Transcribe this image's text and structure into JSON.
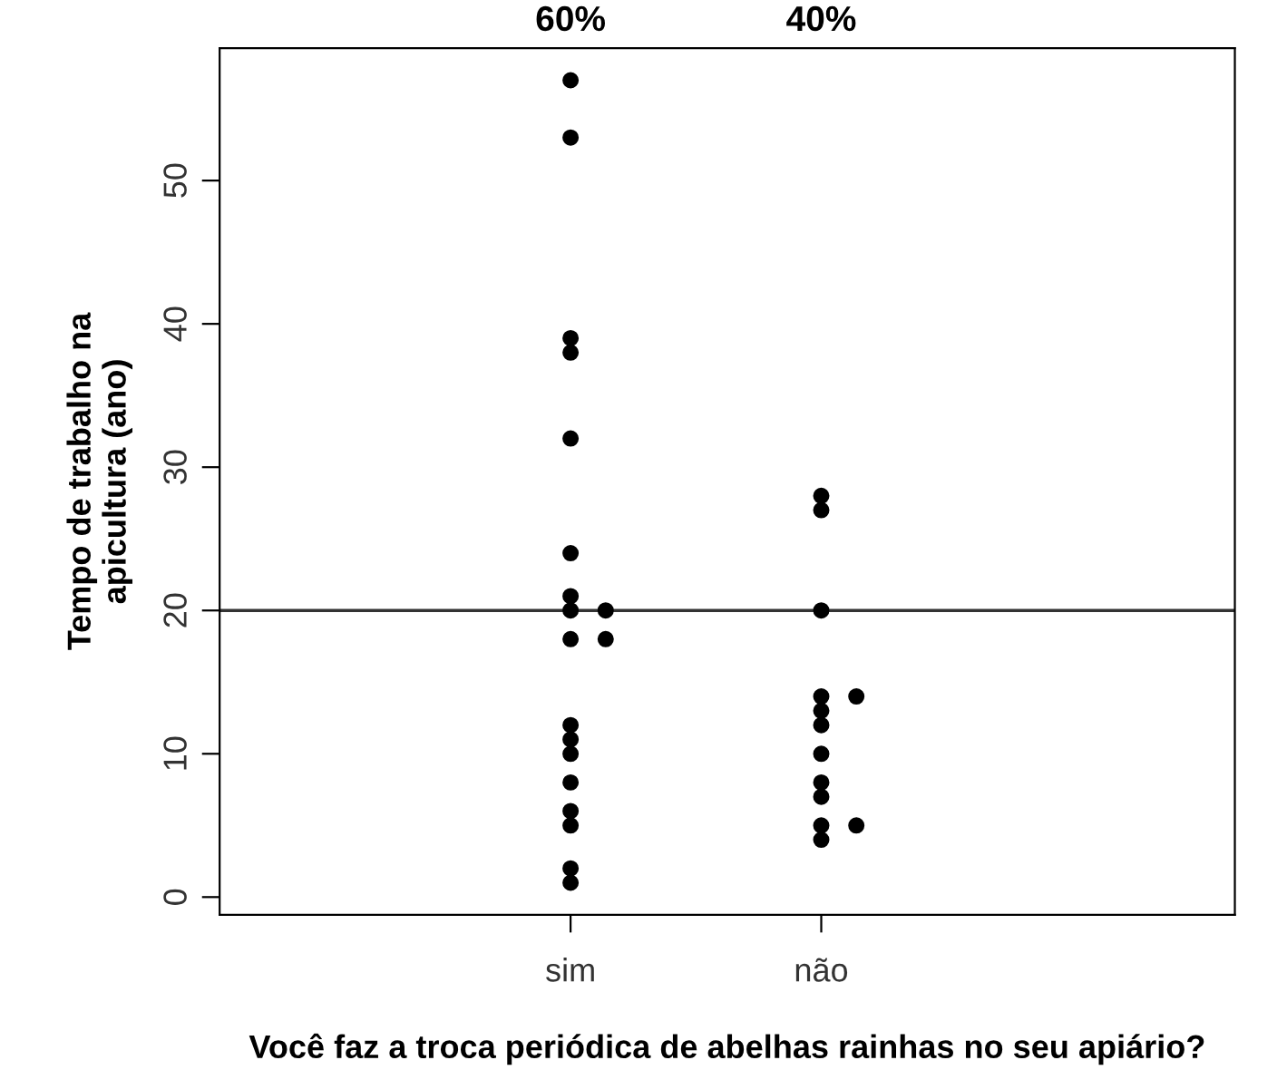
{
  "chart_data": {
    "type": "scatter",
    "xlabel": "Você faz a troca periódica de abelhas rainhas no seu apiário?",
    "ylabel": "Tempo de trabalho na\napicultura (ano)",
    "categories": [
      "sim",
      "não"
    ],
    "series": [
      {
        "color": "#000000",
        "x": [
          "sim",
          "sim",
          "sim",
          "sim",
          "sim",
          "sim",
          "sim",
          "sim",
          "sim",
          "sim",
          "sim",
          "sim",
          "sim",
          "sim",
          "sim",
          "sim",
          "sim",
          "sim",
          "sim",
          "não",
          "não",
          "não",
          "não",
          "não",
          "não",
          "não",
          "não",
          "não",
          "não",
          "não",
          "não",
          "não"
        ],
        "values": [
          57,
          53,
          39,
          38,
          32,
          24,
          21,
          20,
          20,
          18,
          18,
          12,
          11,
          10,
          8,
          6,
          5,
          2,
          1,
          28,
          27,
          20,
          14,
          14,
          13,
          12,
          10,
          8,
          7,
          5,
          5,
          4
        ]
      }
    ],
    "ylim": [
      -1.24,
      59.24
    ],
    "yticks": [
      0,
      10,
      20,
      30,
      40,
      50
    ],
    "marker": "circle",
    "grid": false,
    "ref_lines": [
      {
        "axis": "y",
        "value": 20,
        "color": "#333333"
      }
    ],
    "annotations": [
      "60%",
      "40%"
    ]
  }
}
